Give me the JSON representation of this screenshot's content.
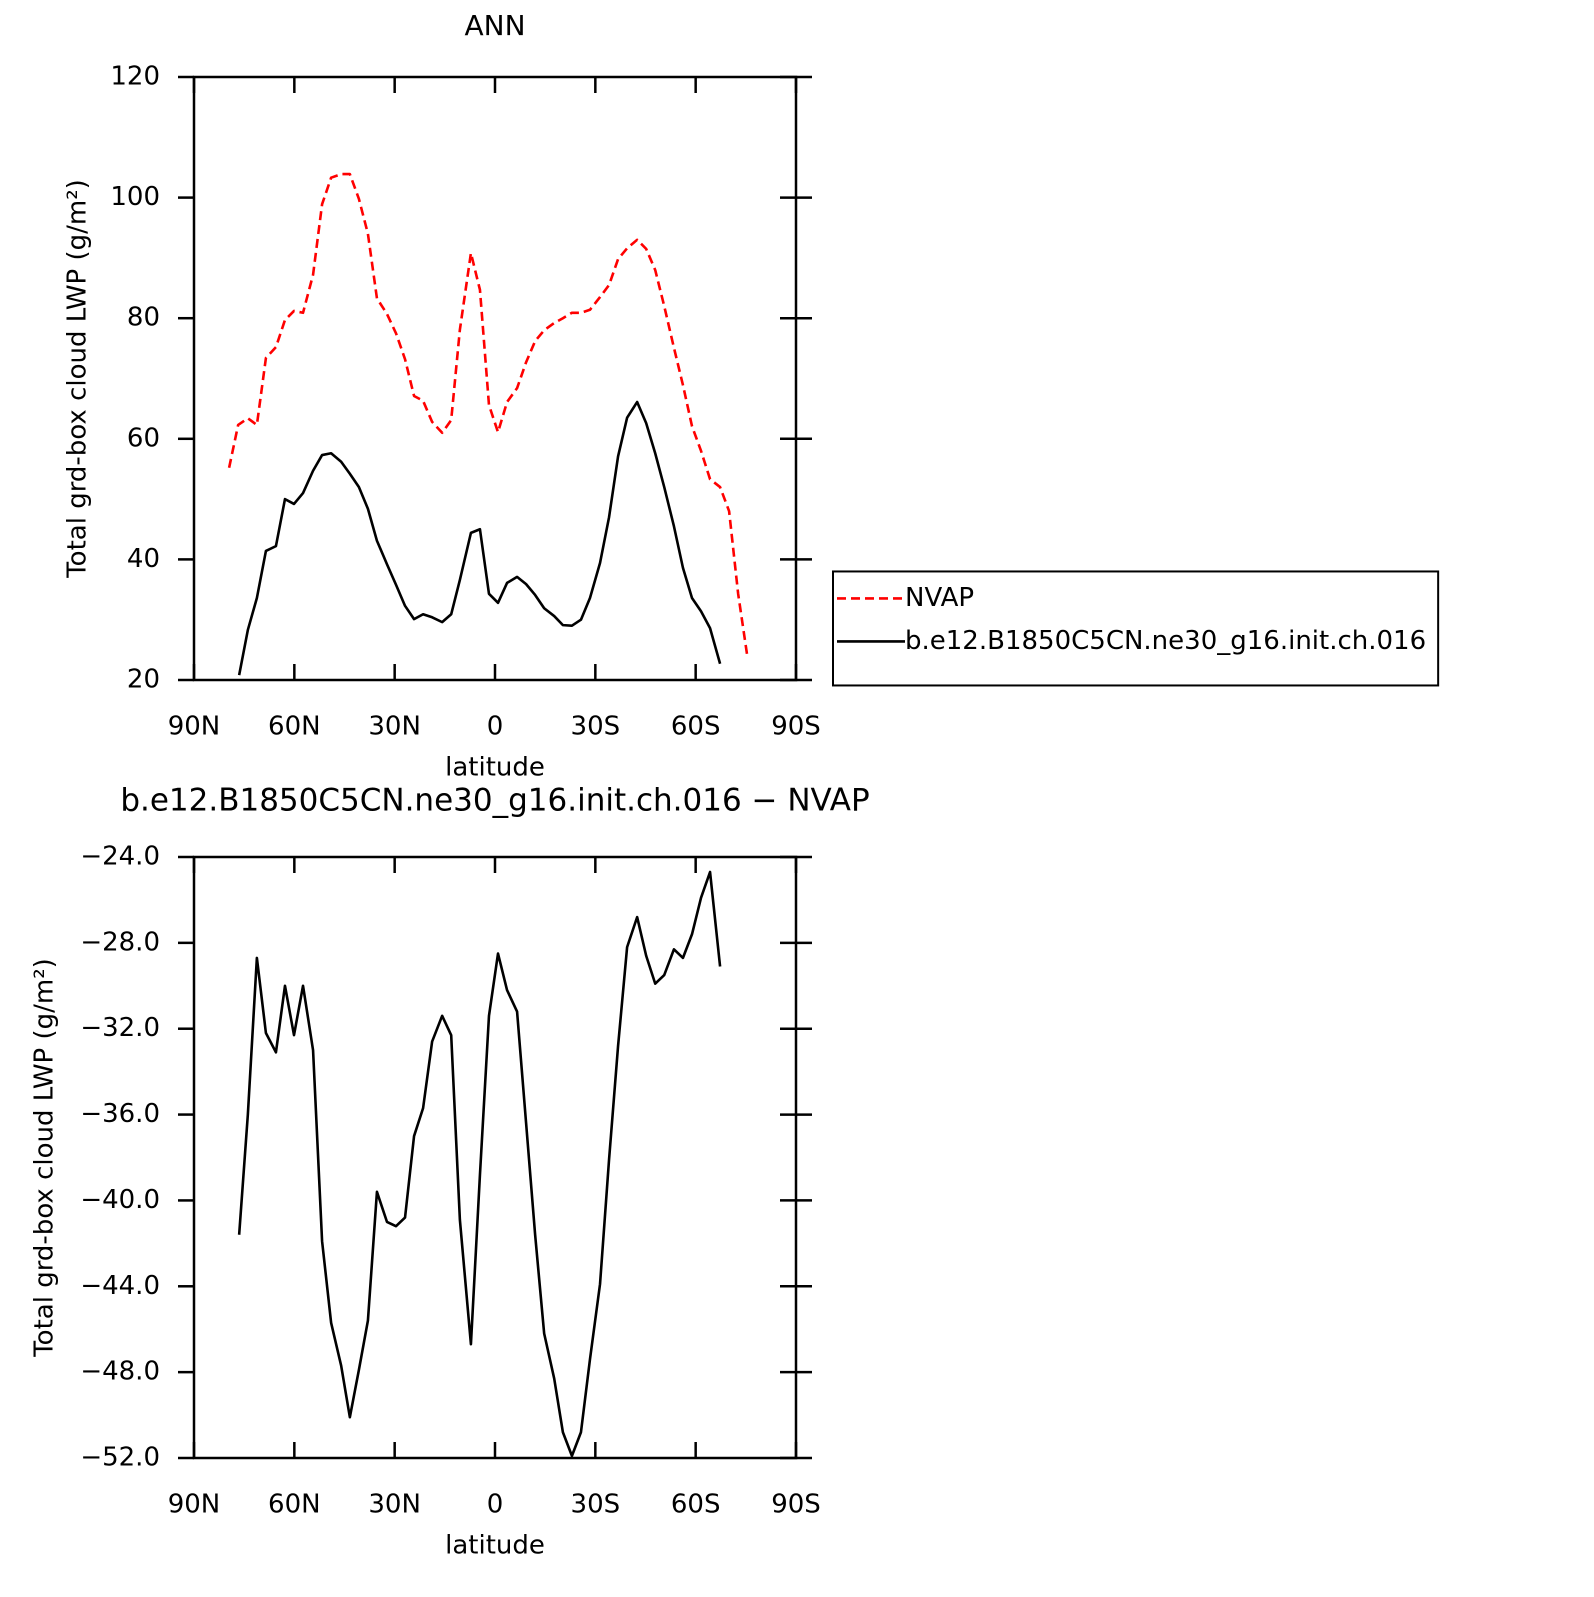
{
  "chart_data": [
    {
      "type": "line",
      "title": "ANN",
      "xlabel": "latitude",
      "ylabel": "Total grd-box cloud LWP (g/m²)",
      "xlim": [
        90,
        -90
      ],
      "xticks": [
        {
          "value": 90,
          "label": "90N"
        },
        {
          "value": 60,
          "label": "60N"
        },
        {
          "value": 30,
          "label": "30N"
        },
        0,
        {
          "value": -30,
          "label": "30S"
        },
        {
          "value": -60,
          "label": "60S"
        },
        {
          "value": -90,
          "label": "90S"
        }
      ],
      "ylim": [
        20,
        120
      ],
      "yticks": [
        20,
        40,
        60,
        80,
        100,
        120
      ],
      "legend": "right",
      "series": [
        {
          "name": "NVAP",
          "color": "#ff0000",
          "style": "dashed",
          "x": [
            79.5,
            76.8,
            73.9,
            71.2,
            68.5,
            65.5,
            62.8,
            60.1,
            57.4,
            54.4,
            51.7,
            49.0,
            46.0,
            43.4,
            40.7,
            38.0,
            35.3,
            32.3,
            29.6,
            26.9,
            24.2,
            21.5,
            18.8,
            15.8,
            13.1,
            10.5,
            7.2,
            4.5,
            1.8,
            -0.9,
            -3.6,
            -6.6,
            -9.3,
            -12.0,
            -14.7,
            -17.7,
            -20.3,
            -23.0,
            -25.7,
            -28.4,
            -31.4,
            -34.1,
            -36.8,
            -39.5,
            -42.5,
            -45.2,
            -47.9,
            -50.6,
            -53.5,
            -56.2,
            -58.9,
            -61.6,
            -64.3,
            -67.3,
            -70.0,
            -72.7,
            -75.4
          ],
          "values": [
            55.2,
            62.3,
            63.4,
            62.3,
            73.4,
            75.2,
            79.7,
            81.2,
            80.9,
            87.2,
            98.9,
            103.3,
            103.9,
            103.9,
            99.8,
            94.0,
            83.3,
            80.7,
            77.5,
            73.2,
            67.1,
            66.3,
            62.8,
            61.0,
            63.1,
            78.1,
            90.8,
            84.7,
            65.6,
            61.1,
            66.1,
            68.4,
            72.7,
            76.2,
            78.0,
            79.2,
            80.0,
            80.9,
            80.9,
            81.4,
            83.5,
            85.5,
            89.8,
            91.6,
            93.0,
            91.5,
            88.0,
            82.0,
            75.1,
            68.9,
            62.1,
            58.0,
            53.3,
            52.0,
            48.0,
            34.3,
            24.1
          ]
        },
        {
          "name": "b.e12.B1850C5CN.ne30_g16.init.ch.016",
          "color": "#000000",
          "style": "solid",
          "x": [
            76.5,
            73.9,
            71.2,
            68.5,
            65.5,
            62.8,
            60.1,
            57.4,
            54.4,
            51.7,
            49.0,
            46.0,
            43.4,
            40.7,
            38.0,
            35.3,
            32.3,
            29.6,
            26.9,
            24.2,
            21.5,
            18.8,
            15.8,
            13.1,
            10.5,
            7.2,
            4.5,
            1.8,
            -0.9,
            -3.6,
            -6.6,
            -9.3,
            -12.0,
            -14.7,
            -17.7,
            -20.3,
            -23.0,
            -25.7,
            -28.4,
            -31.4,
            -34.1,
            -36.8,
            -39.5,
            -42.5,
            -45.2,
            -47.9,
            -50.6,
            -53.5,
            -56.2,
            -58.9,
            -61.6,
            -64.3,
            -67.3
          ],
          "values": [
            20.8,
            28.3,
            33.6,
            41.4,
            42.2,
            50.0,
            49.2,
            51.0,
            54.7,
            57.3,
            57.6,
            56.2,
            54.2,
            52.0,
            48.4,
            43.1,
            39.2,
            35.8,
            32.3,
            30.1,
            30.9,
            30.4,
            29.6,
            30.9,
            36.6,
            44.4,
            45.0,
            34.3,
            32.8,
            36.1,
            37.1,
            35.9,
            34.1,
            31.9,
            30.6,
            29.1,
            29.0,
            30.0,
            33.6,
            39.4,
            47.0,
            57.1,
            63.5,
            66.1,
            62.6,
            57.6,
            52.0,
            45.5,
            38.6,
            33.6,
            31.4,
            28.6,
            22.7
          ]
        }
      ]
    },
    {
      "type": "line",
      "title": "b.e12.B1850C5CN.ne30_g16.init.ch.016 − NVAP",
      "xlabel": "latitude",
      "ylabel": "Total grd-box cloud LWP (g/m²)",
      "xlim": [
        90,
        -90
      ],
      "xticks": [
        {
          "value": 90,
          "label": "90N"
        },
        {
          "value": 60,
          "label": "60N"
        },
        {
          "value": 30,
          "label": "30N"
        },
        0,
        {
          "value": -30,
          "label": "30S"
        },
        {
          "value": -60,
          "label": "60S"
        },
        {
          "value": -90,
          "label": "90S"
        }
      ],
      "ylim": [
        -52,
        -24
      ],
      "yticks": [
        {
          "value": -52,
          "label": "−52.0"
        },
        {
          "value": -48,
          "label": "−48.0"
        },
        {
          "value": -44,
          "label": "−44.0"
        },
        {
          "value": -40,
          "label": "−40.0"
        },
        {
          "value": -36,
          "label": "−36.0"
        },
        {
          "value": -32,
          "label": "−32.0"
        },
        {
          "value": -28,
          "label": "−28.0"
        },
        {
          "value": -24,
          "label": "−24.0"
        }
      ],
      "series": [
        {
          "color": "#000000",
          "style": "solid",
          "x": [
            76.5,
            73.9,
            71.2,
            68.5,
            65.5,
            62.8,
            60.1,
            57.4,
            54.4,
            51.7,
            49.0,
            46.0,
            43.4,
            40.7,
            38.0,
            35.3,
            32.3,
            29.6,
            26.9,
            24.2,
            21.5,
            18.8,
            15.8,
            13.1,
            10.5,
            7.2,
            4.5,
            1.8,
            -0.9,
            -3.6,
            -6.6,
            -9.3,
            -12.0,
            -14.7,
            -17.7,
            -20.3,
            -23.0,
            -25.7,
            -28.4,
            -31.4,
            -34.1,
            -36.8,
            -39.5,
            -42.5,
            -45.2,
            -47.9,
            -50.6,
            -53.5,
            -56.2,
            -58.9,
            -61.6,
            -64.3,
            -67.3
          ],
          "values": [
            -41.6,
            -36.0,
            -28.7,
            -32.2,
            -33.1,
            -30.0,
            -32.3,
            -30.0,
            -33.0,
            -41.9,
            -45.7,
            -47.7,
            -50.1,
            -47.9,
            -45.6,
            -39.6,
            -41.0,
            -41.2,
            -40.8,
            -37.0,
            -35.7,
            -32.6,
            -31.4,
            -32.3,
            -40.9,
            -46.7,
            -38.8,
            -31.4,
            -28.5,
            -30.2,
            -31.2,
            -36.4,
            -41.6,
            -46.2,
            -48.3,
            -50.8,
            -51.9,
            -50.8,
            -47.4,
            -43.9,
            -38.1,
            -32.8,
            -28.2,
            -26.8,
            -28.6,
            -29.9,
            -29.5,
            -28.3,
            -28.7,
            -27.6,
            -25.9,
            -24.7,
            -29.1
          ]
        }
      ]
    }
  ]
}
